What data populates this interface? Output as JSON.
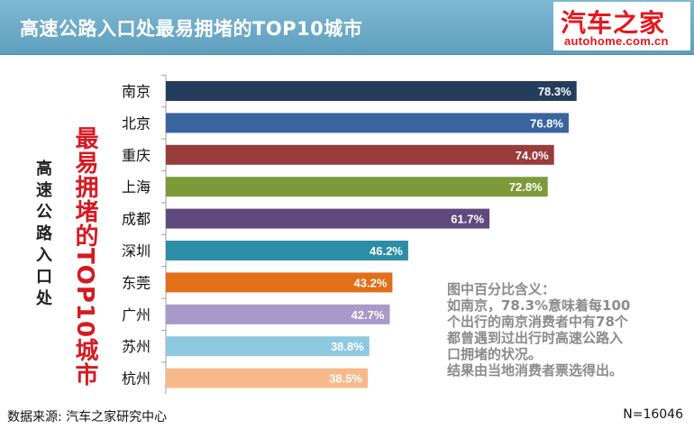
{
  "header": {
    "title": "高速公路入口处最易拥堵的TOP10城市",
    "logo_cn": "汽车之家",
    "logo_en": "autohome.com.cn"
  },
  "side_title_chars": [
    "高",
    "速",
    "公",
    "路",
    "入",
    "口",
    "处"
  ],
  "red_title": "最易拥堵的TOP10城市",
  "chart_data": {
    "type": "bar",
    "orientation": "horizontal",
    "categories": [
      "南京",
      "北京",
      "重庆",
      "上海",
      "成都",
      "深圳",
      "东莞",
      "广州",
      "苏州",
      "杭州"
    ],
    "values": [
      78.3,
      76.8,
      74.0,
      72.8,
      61.7,
      46.2,
      43.2,
      42.7,
      38.8,
      38.5
    ],
    "value_labels": [
      "78.3%",
      "76.8%",
      "74.0%",
      "72.8%",
      "61.7%",
      "46.2%",
      "43.2%",
      "42.7%",
      "38.8%",
      "38.5%"
    ],
    "colors": [
      "#243d5c",
      "#3a64a0",
      "#983c3c",
      "#7d9a3a",
      "#604a7d",
      "#2c8ea6",
      "#e26f1a",
      "#a999c9",
      "#8fc9e0",
      "#f8b98a"
    ],
    "xlim": [
      0,
      100
    ],
    "grid": false,
    "legend": "none"
  },
  "note_lines": [
    "图中百分比含义：",
    "如南京，78.3%意味着每100",
    "个出行的南京消费者中有78个",
    "都曾遇到过出行时高速公路入",
    "口拥堵的状况。",
    "结果由当地消费者票选得出。"
  ],
  "footer": {
    "source": "数据来源: 汽车之家研究中心",
    "n": "N=16046"
  }
}
